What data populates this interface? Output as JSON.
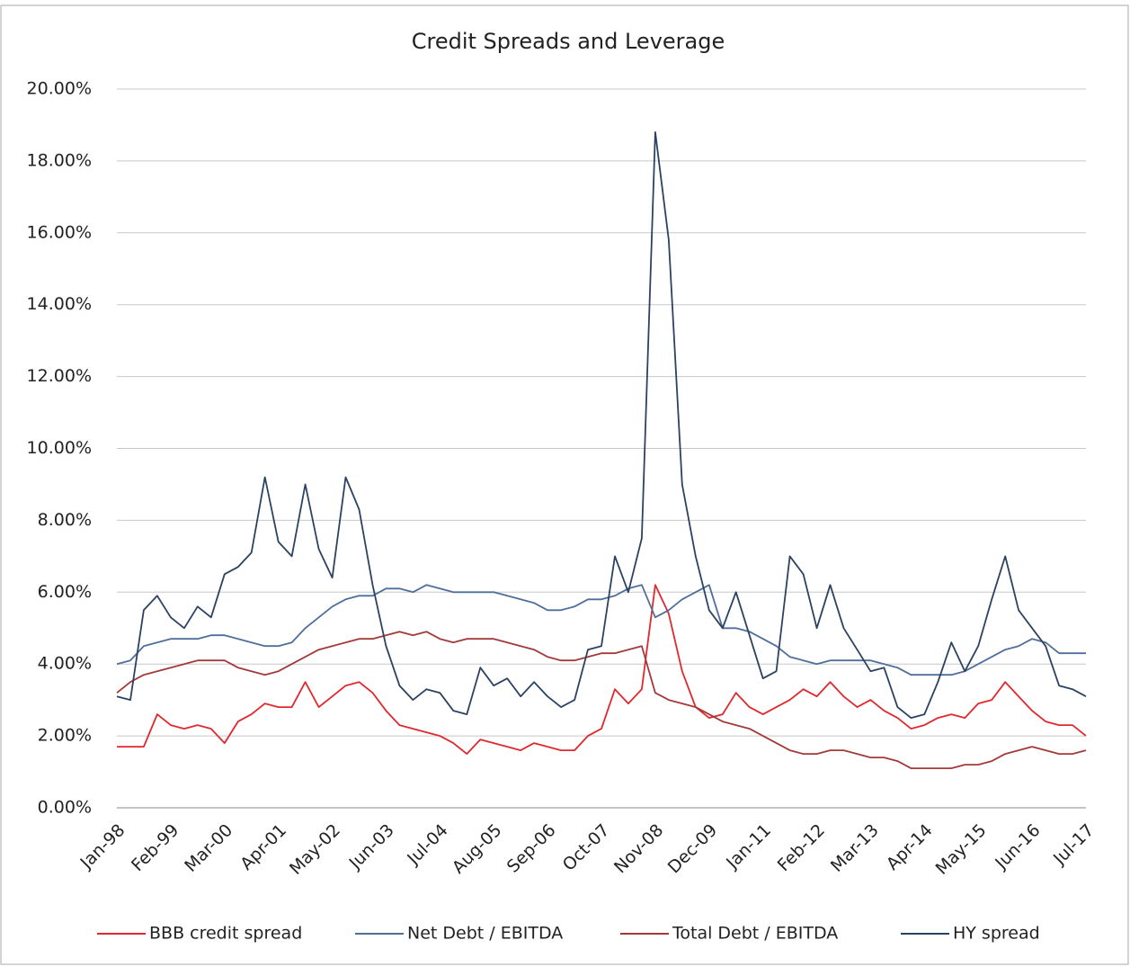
{
  "chart_data": {
    "type": "line",
    "title": "Credit Spreads and Leverage",
    "categories": [
      "Jan-98",
      null,
      null,
      null,
      "Feb-99",
      null,
      null,
      null,
      "Mar-00",
      null,
      null,
      null,
      "Apr-01",
      null,
      null,
      null,
      "May-02",
      null,
      null,
      null,
      "Jun-03",
      null,
      null,
      null,
      "Jul-04",
      null,
      null,
      null,
      "Aug-05",
      null,
      null,
      null,
      "Sep-06",
      null,
      null,
      null,
      "Oct-07",
      null,
      null,
      null,
      "Nov-08",
      null,
      null,
      null,
      "Dec-09",
      null,
      null,
      null,
      "Jan-11",
      null,
      null,
      null,
      "Feb-12",
      null,
      null,
      null,
      "Mar-13",
      null,
      null,
      null,
      "Apr-14",
      null,
      null,
      null,
      "May-15",
      null,
      null,
      null,
      "Jun-16",
      null,
      null,
      null,
      "Jul-17"
    ],
    "series": [
      {
        "name": "BBB credit spread",
        "color": "#e0282e",
        "values": [
          1.7,
          1.7,
          1.7,
          2.6,
          2.3,
          2.2,
          2.3,
          2.2,
          1.8,
          2.4,
          2.6,
          2.9,
          2.8,
          2.8,
          3.5,
          2.8,
          3.1,
          3.4,
          3.5,
          3.2,
          2.7,
          2.3,
          2.2,
          2.1,
          2.0,
          1.8,
          1.5,
          1.9,
          1.8,
          1.7,
          1.6,
          1.8,
          1.7,
          1.6,
          1.6,
          2.0,
          2.2,
          3.3,
          2.9,
          3.3,
          6.2,
          5.4,
          3.8,
          2.8,
          2.5,
          2.6,
          3.2,
          2.8,
          2.6,
          2.8,
          3.0,
          3.3,
          3.1,
          3.5,
          3.1,
          2.8,
          3.0,
          2.7,
          2.5,
          2.2,
          2.3,
          2.5,
          2.6,
          2.5,
          2.9,
          3.0,
          3.5,
          3.1,
          2.7,
          2.4,
          2.3,
          2.3,
          2.0
        ]
      },
      {
        "name": "Net Debt / EBITDA",
        "color": "#4f6f9a",
        "values": [
          4.0,
          4.1,
          4.5,
          4.6,
          4.7,
          4.7,
          4.7,
          4.8,
          4.8,
          4.7,
          4.6,
          4.5,
          4.5,
          4.6,
          5.0,
          5.3,
          5.6,
          5.8,
          5.9,
          5.9,
          6.1,
          6.1,
          6.0,
          6.2,
          6.1,
          6.0,
          6.0,
          6.0,
          6.0,
          5.9,
          5.8,
          5.7,
          5.5,
          5.5,
          5.6,
          5.8,
          5.8,
          5.9,
          6.1,
          6.2,
          5.3,
          5.5,
          5.8,
          6.0,
          6.2,
          5.0,
          5.0,
          4.9,
          4.7,
          4.5,
          4.2,
          4.1,
          4.0,
          4.1,
          4.1,
          4.1,
          4.1,
          4.0,
          3.9,
          3.7,
          3.7,
          3.7,
          3.7,
          3.8,
          4.0,
          4.2,
          4.4,
          4.5,
          4.7,
          4.6,
          4.3,
          4.3,
          4.3
        ]
      },
      {
        "name": "Total Debt / EBITDA",
        "color": "#a33a3a",
        "values": [
          3.2,
          3.5,
          3.7,
          3.8,
          3.9,
          4.0,
          4.1,
          4.1,
          4.1,
          3.9,
          3.8,
          3.7,
          3.8,
          4.0,
          4.2,
          4.4,
          4.5,
          4.6,
          4.7,
          4.7,
          4.8,
          4.9,
          4.8,
          4.9,
          4.7,
          4.6,
          4.7,
          4.7,
          4.7,
          4.6,
          4.5,
          4.4,
          4.2,
          4.1,
          4.1,
          4.2,
          4.3,
          4.3,
          4.4,
          4.5,
          3.2,
          3.0,
          2.9,
          2.8,
          2.6,
          2.4,
          2.3,
          2.2,
          2.0,
          1.8,
          1.6,
          1.5,
          1.5,
          1.6,
          1.6,
          1.5,
          1.4,
          1.4,
          1.3,
          1.1,
          1.1,
          1.1,
          1.1,
          1.2,
          1.2,
          1.3,
          1.5,
          1.6,
          1.7,
          1.6,
          1.5,
          1.5,
          1.6
        ]
      },
      {
        "name": "HY spread",
        "color": "#2b4263",
        "values": [
          3.1,
          3.0,
          5.5,
          5.9,
          5.3,
          5.0,
          5.6,
          5.3,
          6.5,
          6.7,
          7.1,
          9.2,
          7.4,
          7.0,
          9.0,
          7.2,
          6.4,
          9.2,
          8.3,
          6.2,
          4.5,
          3.4,
          3.0,
          3.3,
          3.2,
          2.7,
          2.6,
          3.9,
          3.4,
          3.6,
          3.1,
          3.5,
          3.1,
          2.8,
          3.0,
          4.4,
          4.5,
          7.0,
          6.0,
          7.5,
          18.8,
          15.8,
          9.0,
          7.0,
          5.5,
          5.0,
          6.0,
          4.8,
          3.6,
          3.8,
          7.0,
          6.5,
          5.0,
          6.2,
          5.0,
          4.4,
          3.8,
          3.9,
          2.8,
          2.5,
          2.6,
          3.5,
          4.6,
          3.8,
          4.5,
          5.8,
          7.0,
          5.5,
          5.0,
          4.5,
          3.4,
          3.3,
          3.1
        ]
      }
    ],
    "ylim": [
      0,
      20
    ],
    "yticks": [
      {
        "value": 0,
        "label": "0.00%"
      },
      {
        "value": 2,
        "label": "2.00%"
      },
      {
        "value": 4,
        "label": "4.00%"
      },
      {
        "value": 6,
        "label": "6.00%"
      },
      {
        "value": 8,
        "label": "8.00%"
      },
      {
        "value": 10,
        "label": "10.00%"
      },
      {
        "value": 12,
        "label": "12.00%"
      },
      {
        "value": 14,
        "label": "14.00%"
      },
      {
        "value": 16,
        "label": "16.00%"
      },
      {
        "value": 18,
        "label": "18.00%"
      },
      {
        "value": 20,
        "label": "20.00%"
      }
    ],
    "grid": true,
    "legend": "bottom"
  }
}
